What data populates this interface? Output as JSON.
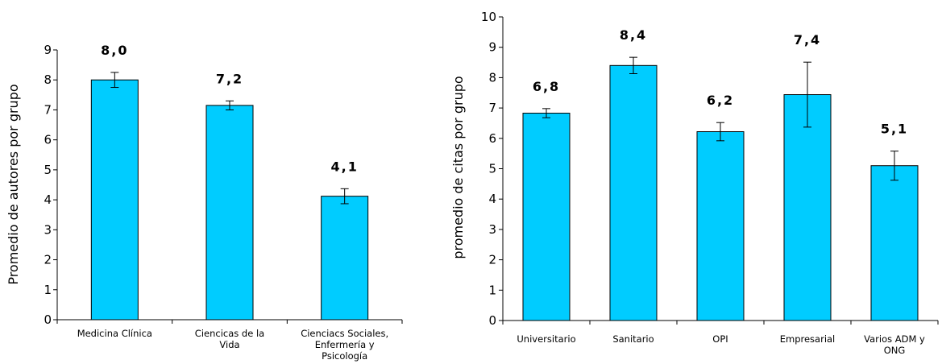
{
  "chart_data": [
    {
      "type": "bar",
      "title": "",
      "ylabel": "Promedio de autores por grupo",
      "xlabel": "",
      "categories": [
        [
          "Medicina Clínica"
        ],
        [
          "Ciencicas de la",
          "Vida"
        ],
        [
          "Cienciacs Sociales,",
          "Enfermería y",
          "Psicología"
        ]
      ],
      "values": [
        8.0,
        7.15,
        4.12
      ],
      "value_labels": [
        "8,0",
        "7,2",
        "4,1"
      ],
      "error": [
        0.25,
        0.15,
        0.25
      ],
      "ylim": [
        0,
        9
      ],
      "yticks": [
        "0",
        "1",
        "2",
        "3",
        "4",
        "5",
        "6",
        "7",
        "8",
        "9"
      ],
      "bar_color": "#00ccff",
      "grid": false
    },
    {
      "type": "bar",
      "title": "",
      "ylabel": "promedio de citas por grupo",
      "xlabel": "",
      "categories": [
        [
          "Universitario"
        ],
        [
          "Sanitario"
        ],
        [
          "OPI"
        ],
        [
          "Empresarial"
        ],
        [
          "Varios ADM y",
          "ONG"
        ]
      ],
      "values": [
        6.83,
        8.4,
        6.22,
        7.44,
        5.1
      ],
      "value_labels": [
        "6,8",
        "8,4",
        "6,2",
        "7,4",
        "5,1"
      ],
      "error": [
        0.15,
        0.27,
        0.3,
        1.07,
        0.48
      ],
      "ylim": [
        0,
        10
      ],
      "yticks": [
        "0",
        "1",
        "2",
        "3",
        "4",
        "5",
        "6",
        "7",
        "8",
        "9",
        "10"
      ],
      "bar_color": "#00ccff",
      "grid": false
    }
  ]
}
